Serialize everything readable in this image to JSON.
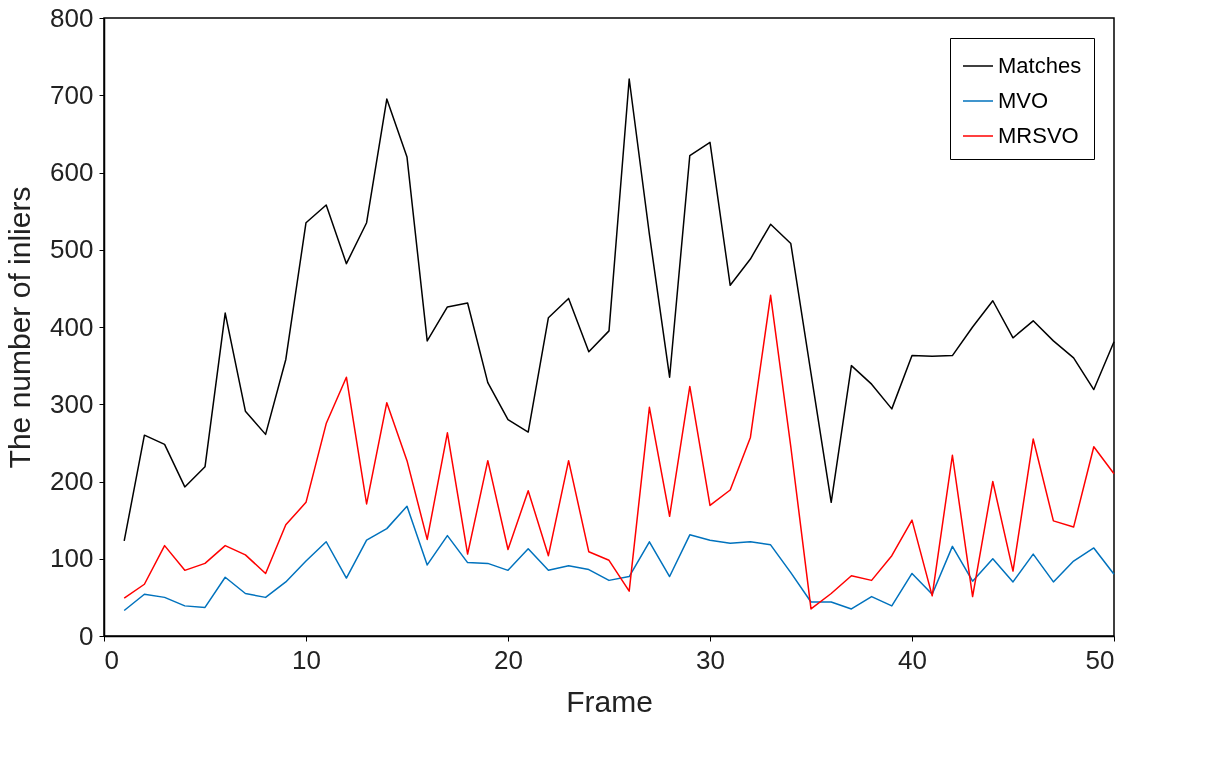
{
  "chart_data": {
    "type": "line",
    "xlabel": "Frame",
    "ylabel": "The number of inliers",
    "x": [
      1,
      2,
      3,
      4,
      5,
      6,
      7,
      8,
      9,
      10,
      11,
      12,
      13,
      14,
      15,
      16,
      17,
      18,
      19,
      20,
      21,
      22,
      23,
      24,
      25,
      26,
      27,
      28,
      29,
      30,
      31,
      32,
      33,
      34,
      35,
      36,
      37,
      38,
      39,
      40,
      41,
      42,
      43,
      44,
      45,
      46,
      47,
      48,
      49,
      50
    ],
    "xlim": [
      0,
      50
    ],
    "xticks": [
      0,
      10,
      20,
      30,
      40,
      50
    ],
    "ylim": [
      0,
      800
    ],
    "yticks": [
      0,
      100,
      200,
      300,
      400,
      500,
      600,
      700,
      800
    ],
    "grid": false,
    "legend": "top right",
    "marker": "none",
    "line_style": "solid",
    "series": [
      {
        "name": "Matches",
        "color": "#000000",
        "values": [
          123,
          260,
          248,
          193,
          219,
          418,
          291,
          261,
          358,
          535,
          558,
          482,
          535,
          695,
          620,
          382,
          426,
          431,
          328,
          280,
          264,
          412,
          437,
          368,
          395,
          721,
          520,
          335,
          622,
          639,
          454,
          488,
          533,
          508,
          340,
          173,
          350,
          326,
          294,
          363,
          362,
          363,
          400,
          434,
          386,
          408,
          382,
          360,
          319,
          381
        ]
      },
      {
        "name": "MVO",
        "color": "#0072bd",
        "values": [
          33,
          54,
          50,
          39,
          37,
          76,
          55,
          50,
          70,
          97,
          122,
          75,
          124,
          139,
          168,
          92,
          130,
          95,
          94,
          85,
          113,
          85,
          91,
          86,
          72,
          77,
          122,
          77,
          131,
          124,
          120,
          122,
          118,
          82,
          44,
          44,
          35,
          51,
          39,
          81,
          54,
          116,
          71,
          100,
          70,
          106,
          70,
          97,
          114,
          80
        ]
      },
      {
        "name": "MRSVO",
        "color": "#ff0000",
        "values": [
          49,
          67,
          117,
          85,
          94,
          117,
          105,
          81,
          144,
          173,
          275,
          335,
          171,
          302,
          227,
          125,
          263,
          106,
          227,
          112,
          188,
          104,
          227,
          109,
          98,
          58,
          296,
          155,
          323,
          169,
          189,
          257,
          441,
          245,
          35,
          55,
          78,
          72,
          104,
          150,
          52,
          234,
          51,
          200,
          84,
          255,
          149,
          141,
          245,
          210
        ]
      }
    ]
  }
}
